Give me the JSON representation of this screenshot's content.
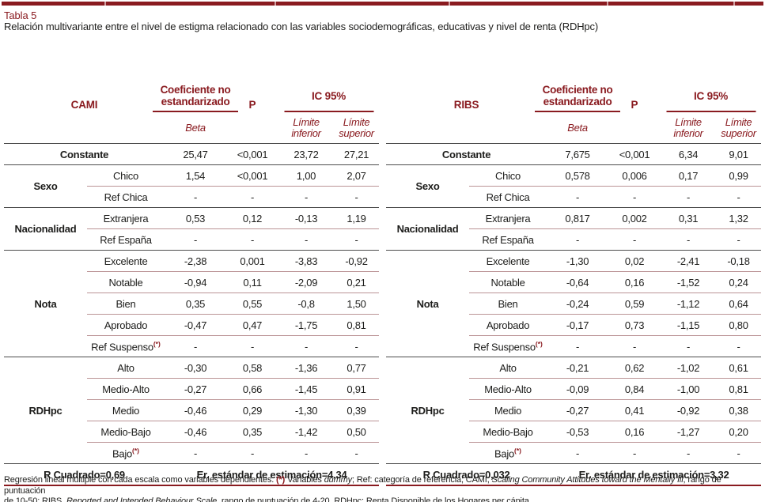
{
  "page": {
    "title_label": "Tabla 5",
    "subtitle": "Relación multivariante entre el nivel de estigma relacionado con las variables sociodemográficas, educativas y nivel de renta (RDHpc)"
  },
  "colors": {
    "maroon": "#8a1b20",
    "dark_rule": "#4c4c4c",
    "light_rule": "#bb9496",
    "text": "#1d1d1b"
  },
  "header_labels": {
    "coef": "Coeficiente no estandarizado",
    "beta": "Beta",
    "p": "P",
    "ic": "IC 95%",
    "limite": "Límite",
    "inferior": "inferior",
    "superior": "superior"
  },
  "tables": [
    {
      "scale": "CAMI",
      "constante": {
        "label": "Constante",
        "cells": [
          "25,47",
          "<0,001",
          "23,72",
          "27,21"
        ]
      },
      "groups": [
        {
          "label": "Sexo",
          "rows": [
            {
              "category": "Chico",
              "sup": "",
              "cells": [
                "1,54",
                "<0,001",
                "1,00",
                "2,07"
              ]
            },
            {
              "category": "Ref Chica",
              "sup": "",
              "cells": [
                "-",
                "-",
                "-",
                "-"
              ]
            }
          ]
        },
        {
          "label": "Nacionalidad",
          "rows": [
            {
              "category": "Extranjera",
              "sup": "",
              "cells": [
                "0,53",
                "0,12",
                "-0,13",
                "1,19"
              ]
            },
            {
              "category": "Ref España",
              "sup": "",
              "cells": [
                "-",
                "-",
                "-",
                "-"
              ]
            }
          ]
        },
        {
          "label": "Nota",
          "rows": [
            {
              "category": "Excelente",
              "sup": "",
              "cells": [
                "-2,38",
                "0,001",
                "-3,83",
                "-0,92"
              ]
            },
            {
              "category": "Notable",
              "sup": "",
              "cells": [
                "-0,94",
                "0,11",
                "-2,09",
                "0,21"
              ]
            },
            {
              "category": "Bien",
              "sup": "",
              "cells": [
                "0,35",
                "0,55",
                "-0,8",
                "1,50"
              ]
            },
            {
              "category": "Aprobado",
              "sup": "",
              "cells": [
                "-0,47",
                "0,47",
                "-1,75",
                "0,81"
              ]
            },
            {
              "category": "Ref Suspenso",
              "sup": "(*)",
              "cells": [
                "-",
                "-",
                "-",
                "-"
              ]
            }
          ]
        },
        {
          "label": "RDHpc",
          "rows": [
            {
              "category": "Alto",
              "sup": "",
              "cells": [
                "-0,30",
                "0,58",
                "-1,36",
                "0,77"
              ]
            },
            {
              "category": "Medio-Alto",
              "sup": "",
              "cells": [
                "-0,27",
                "0,66",
                "-1,45",
                "0,91"
              ]
            },
            {
              "category": "Medio",
              "sup": "",
              "cells": [
                "-0,46",
                "0,29",
                "-1,30",
                "0,39"
              ]
            },
            {
              "category": "Medio-Bajo",
              "sup": "",
              "cells": [
                "-0,46",
                "0,35",
                "-1,42",
                "0,50"
              ]
            },
            {
              "category": "Bajo",
              "sup": "(*)",
              "cells": [
                "-",
                "-",
                "-",
                "-"
              ]
            }
          ]
        }
      ],
      "footer": {
        "r2": "R Cuadrado=0,69",
        "se": "Er. estándar de estimación=4,34"
      }
    },
    {
      "scale": "RIBS",
      "constante": {
        "label": "Constante",
        "cells": [
          "7,675",
          "<0,001",
          "6,34",
          "9,01"
        ]
      },
      "groups": [
        {
          "label": "Sexo",
          "rows": [
            {
              "category": "Chico",
              "sup": "",
              "cells": [
                "0,578",
                "0,006",
                "0,17",
                "0,99"
              ]
            },
            {
              "category": "Ref Chica",
              "sup": "",
              "cells": [
                "-",
                "-",
                "-",
                "-"
              ]
            }
          ]
        },
        {
          "label": "Nacionalidad",
          "rows": [
            {
              "category": "Extranjera",
              "sup": "",
              "cells": [
                "0,817",
                "0,002",
                "0,31",
                "1,32"
              ]
            },
            {
              "category": "Ref España",
              "sup": "",
              "cells": [
                "-",
                "-",
                "-",
                "-"
              ]
            }
          ]
        },
        {
          "label": "Nota",
          "rows": [
            {
              "category": "Excelente",
              "sup": "",
              "cells": [
                "-1,30",
                "0,02",
                "-2,41",
                "-0,18"
              ]
            },
            {
              "category": "Notable",
              "sup": "",
              "cells": [
                "-0,64",
                "0,16",
                "-1,52",
                "0,24"
              ]
            },
            {
              "category": "Bien",
              "sup": "",
              "cells": [
                "-0,24",
                "0,59",
                "-1,12",
                "0,64"
              ]
            },
            {
              "category": "Aprobado",
              "sup": "",
              "cells": [
                "-0,17",
                "0,73",
                "-1,15",
                "0,80"
              ]
            },
            {
              "category": "Ref Suspenso",
              "sup": "(*)",
              "cells": [
                "-",
                "-",
                "-",
                "-"
              ]
            }
          ]
        },
        {
          "label": "RDHpc",
          "rows": [
            {
              "category": "Alto",
              "sup": "",
              "cells": [
                "-0,21",
                "0,62",
                "-1,02",
                "0,61"
              ]
            },
            {
              "category": "Medio-Alto",
              "sup": "",
              "cells": [
                "-0,09",
                "0,84",
                "-1,00",
                "0,81"
              ]
            },
            {
              "category": "Medio",
              "sup": "",
              "cells": [
                "-0,27",
                "0,41",
                "-0,92",
                "0,38"
              ]
            },
            {
              "category": "Medio-Bajo",
              "sup": "",
              "cells": [
                "-0,53",
                "0,16",
                "-1,27",
                "0,20"
              ]
            },
            {
              "category": "Bajo",
              "sup": "(*)",
              "cells": [
                "-",
                "-",
                "-",
                "-"
              ]
            }
          ]
        }
      ],
      "footer": {
        "r2": "R Cuadrado=0,032",
        "se": "Er. estándar de estimación=3,32"
      }
    }
  ],
  "footnote": {
    "lines": [
      [
        {
          "s": "n",
          "text": "Regresión lineal múltiple con cada escala como variables dependientes. "
        },
        {
          "s": "rb",
          "text": "(*)"
        },
        {
          "s": "n",
          "text": " Variables "
        },
        {
          "s": "i",
          "text": "dummy"
        },
        {
          "s": "n",
          "text": "; Ref: categoría de referencia; CAMI, "
        },
        {
          "s": "i",
          "text": "Scaling Community Attitudes toward the Mentally Ill"
        },
        {
          "s": "n",
          "text": ", rango de puntuación"
        }
      ],
      [
        {
          "s": "n",
          "text": "de 10-50; RIBS, "
        },
        {
          "s": "i",
          "text": "Reported and Intended Behaviour Scale"
        },
        {
          "s": "n",
          "text": ", rango de puntuación de 4-20. RDHpc: Renta Disponible de los Hogares per cápita."
        }
      ]
    ]
  }
}
